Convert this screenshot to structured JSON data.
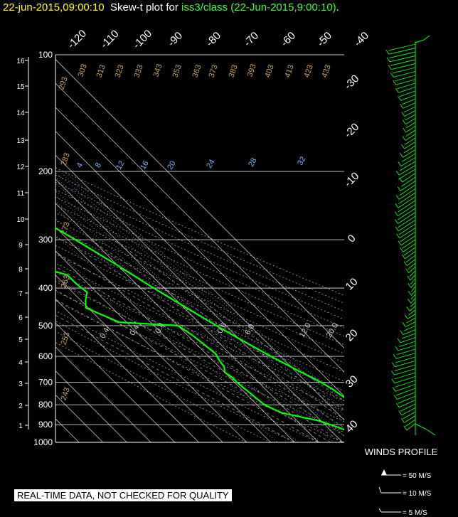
{
  "header": {
    "date_time": "22-jun-2015,09:00:10",
    "plot_label": "Skew-t plot for",
    "dataset": "iss3/class",
    "dataset_time": "(22-Jun-2015,9:00:10)",
    "end": "."
  },
  "disclaimer": "REAL-TIME DATA, NOT CHECKED FOR QUALITY",
  "colors": {
    "title_date": "#ffff00",
    "title_dataset": "#33ff33",
    "trace": "#00ff00",
    "wind": "#00ff00",
    "grid": "#ffffff",
    "dry_adiabat": "#c8a060",
    "mixing_ratio": "#80b0ff",
    "moist_adiabat": "#d0d0d0"
  },
  "chart_data": {
    "type": "skew-t",
    "pressure_axis": {
      "ticks": [
        100,
        200,
        300,
        400,
        500,
        600,
        700,
        800,
        900,
        1000
      ],
      "range": [
        100,
        1000
      ],
      "scale": "log"
    },
    "height_axis": {
      "ticks": [
        1,
        2,
        3,
        4,
        5,
        6,
        7,
        8,
        9,
        10,
        11,
        12,
        13,
        14,
        15,
        16
      ]
    },
    "temperature_labels_top": [
      -120,
      -110,
      -100,
      -90,
      -80,
      -70,
      -60,
      -50,
      -40
    ],
    "temperature_labels_right": [
      -30,
      -20,
      -10,
      0,
      10,
      20,
      30,
      40
    ],
    "dry_adiabat_labels": [
      293,
      303,
      313,
      323,
      333,
      343,
      353,
      363,
      373,
      383,
      393,
      403,
      413,
      423,
      433,
      283,
      273,
      263,
      253,
      243
    ],
    "mixing_ratio_labels": [
      4,
      8,
      12,
      16,
      20,
      24,
      28,
      32
    ],
    "moist_adiabat_labels": [
      "0.4",
      "0.4",
      "0.4",
      "0.6",
      "6.0",
      "12.0",
      "20.0"
    ],
    "series": [
      {
        "name": "temperature",
        "points": [
          [
            932,
            25.5
          ],
          [
            920,
            26
          ],
          [
            890,
            23
          ],
          [
            870,
            24
          ],
          [
            855,
            33.5
          ],
          [
            840,
            33
          ],
          [
            810,
            31
          ],
          [
            780,
            30
          ],
          [
            730,
            28
          ],
          [
            700,
            26
          ],
          [
            650,
            21
          ],
          [
            600,
            16
          ],
          [
            550,
            11
          ],
          [
            500,
            6
          ],
          [
            450,
            1
          ],
          [
            400,
            -4.5
          ],
          [
            350,
            -10
          ],
          [
            300,
            -17
          ],
          [
            250,
            -26
          ],
          [
            200,
            -36
          ],
          [
            170,
            -43.5
          ],
          [
            155,
            -49
          ],
          [
            140,
            -56
          ],
          [
            131,
            -58
          ],
          [
            120,
            -60
          ],
          [
            110,
            -62
          ],
          [
            100,
            -67
          ]
        ]
      },
      {
        "name": "dewpoint",
        "points": [
          [
            932,
            16.5
          ],
          [
            905,
            13
          ],
          [
            880,
            9
          ],
          [
            840,
            -3
          ],
          [
            800,
            -7
          ],
          [
            700,
            -9
          ],
          [
            680,
            -9
          ],
          [
            660,
            -10
          ],
          [
            640,
            -8
          ],
          [
            610,
            -7
          ],
          [
            590,
            -6
          ],
          [
            560,
            -7
          ],
          [
            530,
            -8
          ],
          [
            500,
            -10
          ],
          [
            490,
            -33
          ],
          [
            450,
            -41
          ],
          [
            430,
            -38
          ],
          [
            410,
            -34
          ],
          [
            390,
            -35
          ],
          [
            370,
            -35
          ],
          [
            350,
            -45
          ],
          [
            340,
            -47
          ],
          [
            320,
            -38
          ],
          [
            300,
            -30
          ],
          [
            280,
            -33
          ],
          [
            265,
            -42
          ],
          [
            250,
            -45
          ],
          [
            230,
            -50
          ],
          [
            210,
            -55
          ],
          [
            200,
            -57
          ],
          [
            180,
            -60
          ],
          [
            160,
            -65
          ],
          [
            140,
            -69
          ],
          [
            131,
            -70
          ],
          [
            120,
            -74
          ],
          [
            110,
            -80
          ],
          [
            100,
            -87
          ]
        ]
      }
    ],
    "winds_profile": {
      "title": "WINDS PROFILE",
      "legend": [
        "= 50 M/S",
        "= 10 M/S",
        "= 5 M/S"
      ]
    }
  }
}
